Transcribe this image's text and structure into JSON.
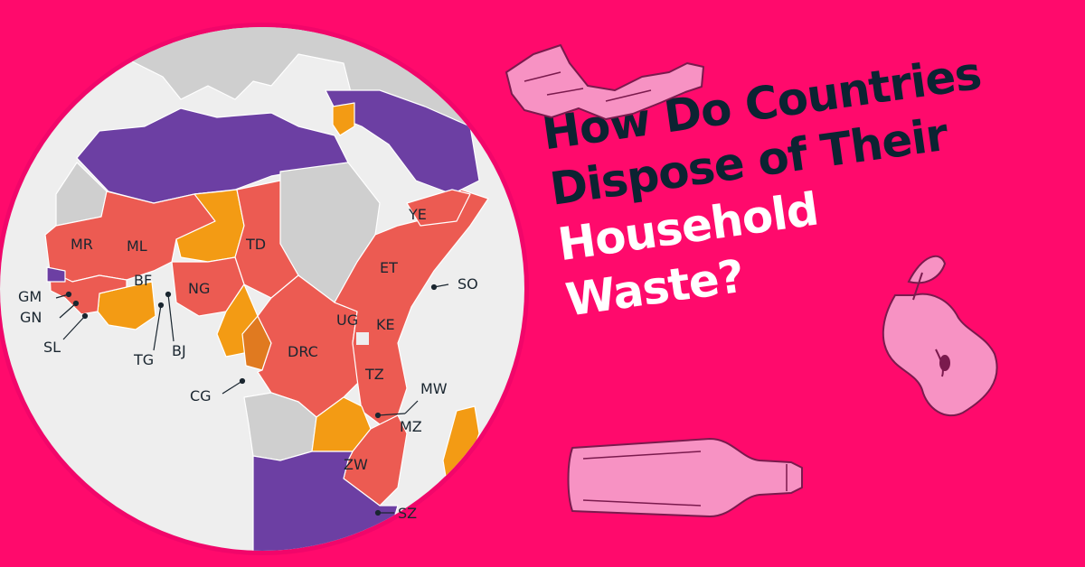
{
  "title": {
    "lines": [
      {
        "text": "How Do Countries",
        "tone": "dark"
      },
      {
        "text": "Dispose of Their",
        "tone": "dark"
      },
      {
        "text": "Household",
        "tone": "light"
      },
      {
        "text": "Waste?",
        "tone": "light"
      }
    ]
  },
  "colors": {
    "background": "#ff0a6c",
    "globe_ocean": "#eeeeee",
    "category_red": "#ec5b52",
    "category_orange": "#f39b14",
    "category_purple": "#6c3fa3",
    "no_data_gray": "#cfcfcf",
    "title_dark": "#0c2332",
    "decoration_pink": "#f792c3"
  },
  "country_labels": [
    "MR",
    "ML",
    "TD",
    "YE",
    "ET",
    "SO",
    "GM",
    "GN",
    "SL",
    "BF",
    "NG",
    "TG",
    "BJ",
    "UG",
    "KE",
    "DRC",
    "CG",
    "TZ",
    "MW",
    "MZ",
    "ZW",
    "SZ"
  ],
  "decorations": [
    "crushed-bottle-icon",
    "apple-core-icon",
    "glass-bottle-icon"
  ]
}
